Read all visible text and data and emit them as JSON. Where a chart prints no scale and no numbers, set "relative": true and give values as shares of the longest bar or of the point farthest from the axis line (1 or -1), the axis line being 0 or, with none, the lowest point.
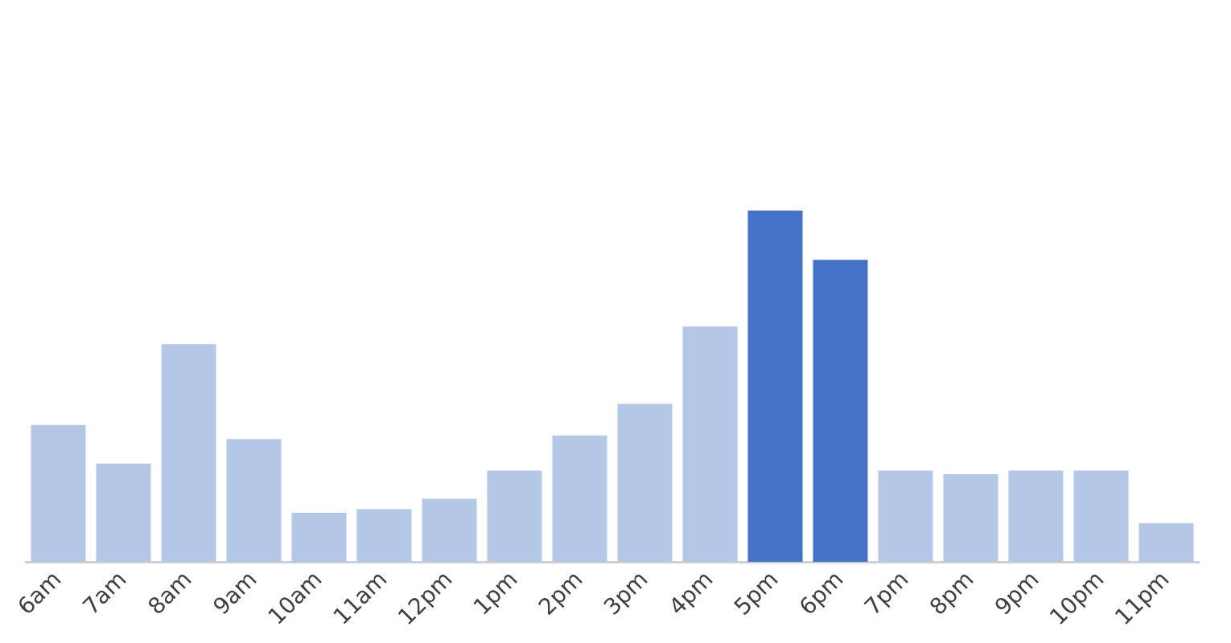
{
  "chart_data": {
    "type": "bar",
    "relative": true,
    "categories": [
      "6am",
      "7am",
      "8am",
      "9am",
      "10am",
      "11am",
      "12pm",
      "1pm",
      "2pm",
      "3pm",
      "4pm",
      "5pm",
      "6pm",
      "7pm",
      "8pm",
      "9pm",
      "10pm",
      "11pm"
    ],
    "values": [
      0.39,
      0.28,
      0.62,
      0.35,
      0.14,
      0.15,
      0.18,
      0.26,
      0.36,
      0.45,
      0.67,
      1,
      0.86,
      0.26,
      0.25,
      0.26,
      0.26,
      0.11
    ],
    "colors": [
      "#b4c7e7",
      "#b4c7e7",
      "#b4c7e7",
      "#b4c7e7",
      "#b4c7e7",
      "#b4c7e7",
      "#b4c7e7",
      "#b4c7e7",
      "#b4c7e7",
      "#b4c7e7",
      "#b4c7e7",
      "#4472c4",
      "#4472c4",
      "#b4c7e7",
      "#b4c7e7",
      "#b4c7e7",
      "#b4c7e7",
      "#b4c7e7"
    ]
  }
}
